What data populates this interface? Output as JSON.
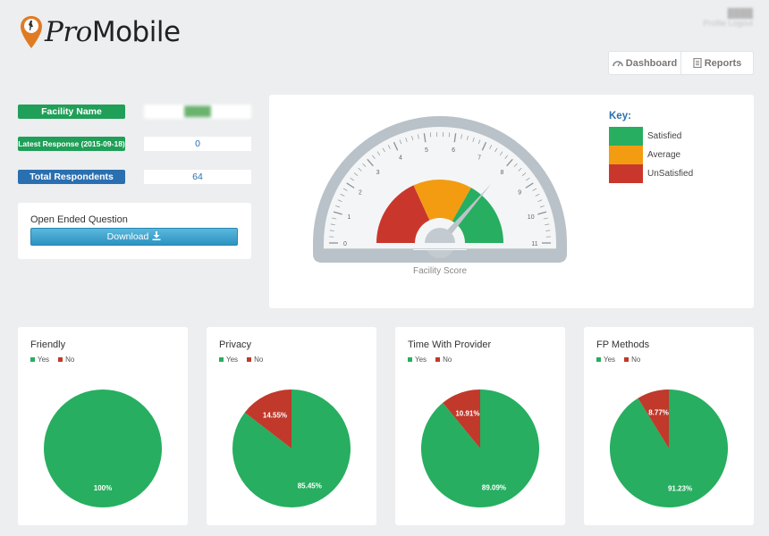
{
  "header": {
    "logo_pro": "Pro",
    "logo_mobile": "Mobile",
    "user_name": "████",
    "user_logout": "Profile Logout"
  },
  "nav": {
    "dashboard": "Dashboard",
    "reports": "Reports"
  },
  "info": {
    "facility_label": "Facility Name",
    "facility_value": "████",
    "latest_label": "Latest Response (2015-09-18)",
    "latest_value": "0",
    "respondents_label": "Total Respondents",
    "respondents_value": "64"
  },
  "open_ended": {
    "title": "Open Ended Question",
    "button": "Download"
  },
  "gauge": {
    "caption": "Facility Score",
    "min": 0,
    "max": 11,
    "ticks": [
      "0",
      "1",
      "2",
      "3",
      "4",
      "5",
      "6",
      "7",
      "8",
      "9",
      "10",
      "11"
    ],
    "value": 8,
    "bands": [
      {
        "from": 0,
        "to": 4,
        "color": "#c9372c"
      },
      {
        "from": 4,
        "to": 7.3,
        "color": "#f39c12"
      },
      {
        "from": 7.3,
        "to": 11,
        "color": "#27ae60"
      }
    ]
  },
  "key": {
    "title": "Key:",
    "items": [
      {
        "label": "Satisfied",
        "color": "#27ae60"
      },
      {
        "label": "Average",
        "color": "#f39c12"
      },
      {
        "label": "UnSatisfied",
        "color": "#c9372c"
      }
    ]
  },
  "colors": {
    "yes": "#27ae60",
    "no": "#c0392b"
  },
  "chart_data": [
    {
      "type": "pie",
      "title": "Friendly",
      "legend": [
        "Yes",
        "No"
      ],
      "values": [
        100,
        0
      ],
      "labels": [
        "100%",
        ""
      ]
    },
    {
      "type": "pie",
      "title": "Privacy",
      "legend": [
        "Yes",
        "No"
      ],
      "values": [
        85.45,
        14.55
      ],
      "labels": [
        "85.45%",
        "14.55%"
      ]
    },
    {
      "type": "pie",
      "title": "Time With Provider",
      "legend": [
        "Yes",
        "No"
      ],
      "values": [
        89.09,
        10.91
      ],
      "labels": [
        "89.09%",
        "10.91%"
      ]
    },
    {
      "type": "pie",
      "title": "FP Methods",
      "legend": [
        "Yes",
        "No"
      ],
      "values": [
        91.23,
        8.77
      ],
      "labels": [
        "91.23%",
        "8.77%"
      ]
    }
  ]
}
